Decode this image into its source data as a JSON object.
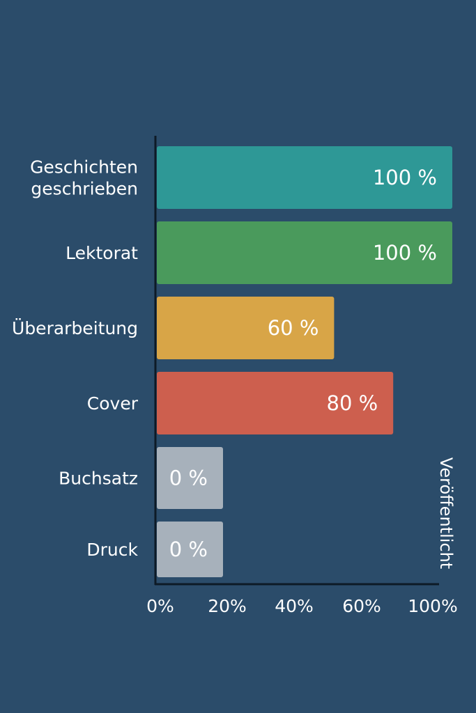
{
  "chart_data": {
    "type": "bar",
    "orientation": "horizontal",
    "categories": [
      [
        "Geschichten",
        "geschrieben"
      ],
      [
        "Lektorat"
      ],
      [
        "Überarbeitung"
      ],
      [
        "Cover"
      ],
      [
        "Buchsatz"
      ],
      [
        "Druck"
      ]
    ],
    "values": [
      100,
      100,
      60,
      80,
      0,
      0
    ],
    "value_labels": [
      "100 %",
      "100 %",
      "60 %",
      "80 %",
      "0 %",
      "0 %"
    ],
    "colors": [
      "#2e9896",
      "#4a9a5c",
      "#d8a547",
      "#cd5f4e",
      "#a7b1bb",
      "#a7b1bb"
    ],
    "xlim": [
      0,
      100
    ],
    "xticks": [
      "0%",
      "20%",
      "40%",
      "60%",
      "100%"
    ],
    "side_label": "Veröffentlicht",
    "grid": false,
    "legend": "none"
  }
}
